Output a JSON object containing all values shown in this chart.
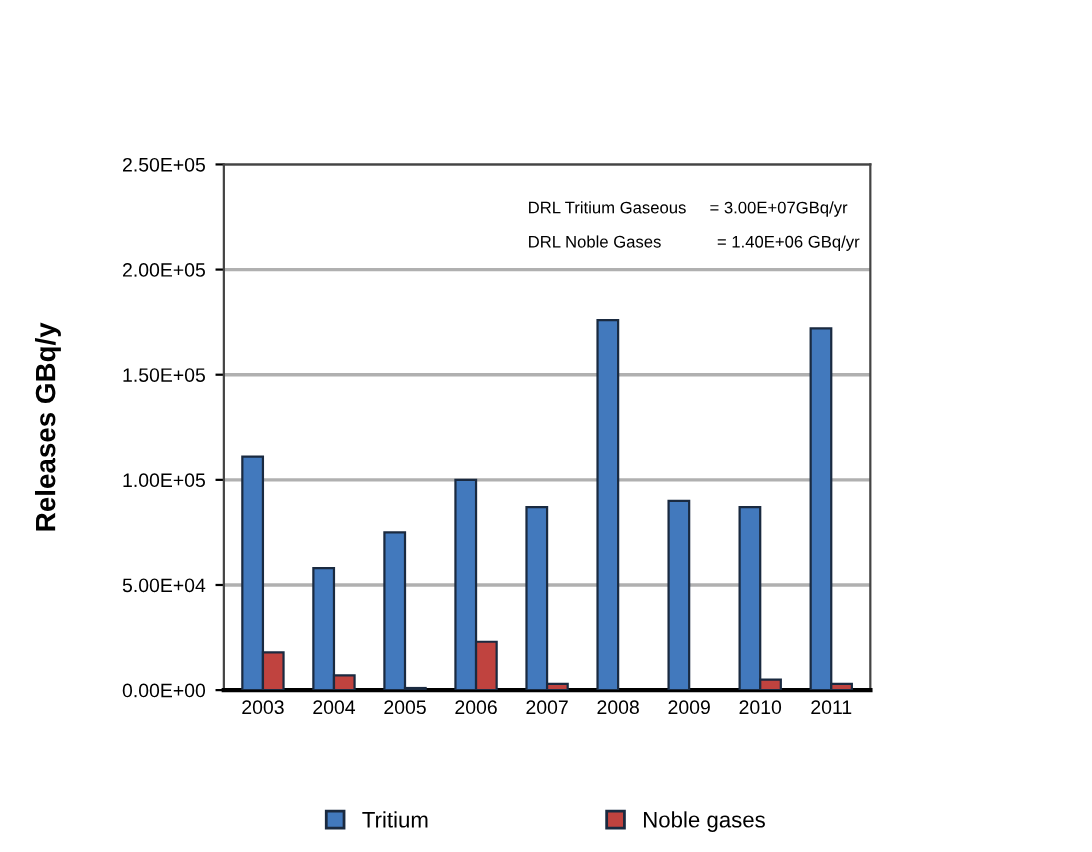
{
  "chart_data": {
    "type": "bar",
    "ylabel": "Releases GBq/y",
    "categories": [
      "2003",
      "2004",
      "2005",
      "2006",
      "2007",
      "2008",
      "2009",
      "2010",
      "2011"
    ],
    "series": [
      {
        "name": "Tritium",
        "color": "#4279bd",
        "values": [
          111000,
          58000,
          75000,
          100000,
          87000,
          176000,
          90000,
          87000,
          172000
        ]
      },
      {
        "name": "Noble gases",
        "color": "#c0433f",
        "values": [
          18000,
          7000,
          1000,
          23000,
          3000,
          null,
          null,
          5000,
          3000
        ]
      }
    ],
    "ylim": [
      0,
      250000
    ],
    "yticks": [
      {
        "value": 0,
        "label": "0.00E+00"
      },
      {
        "value": 50000,
        "label": "5.00E+04"
      },
      {
        "value": 100000,
        "label": "1.00E+05"
      },
      {
        "value": 150000,
        "label": "1.50E+05"
      },
      {
        "value": 200000,
        "label": "2.00E+05"
      },
      {
        "value": 250000,
        "label": "2.50E+05"
      }
    ],
    "grid": "y",
    "legend": "bottom",
    "annotations": [
      "DRL Tritium Gaseous     = 3.00E+07GBq/yr",
      "DRL Noble Gases            = 1.40E+06 GBq/yr"
    ]
  }
}
